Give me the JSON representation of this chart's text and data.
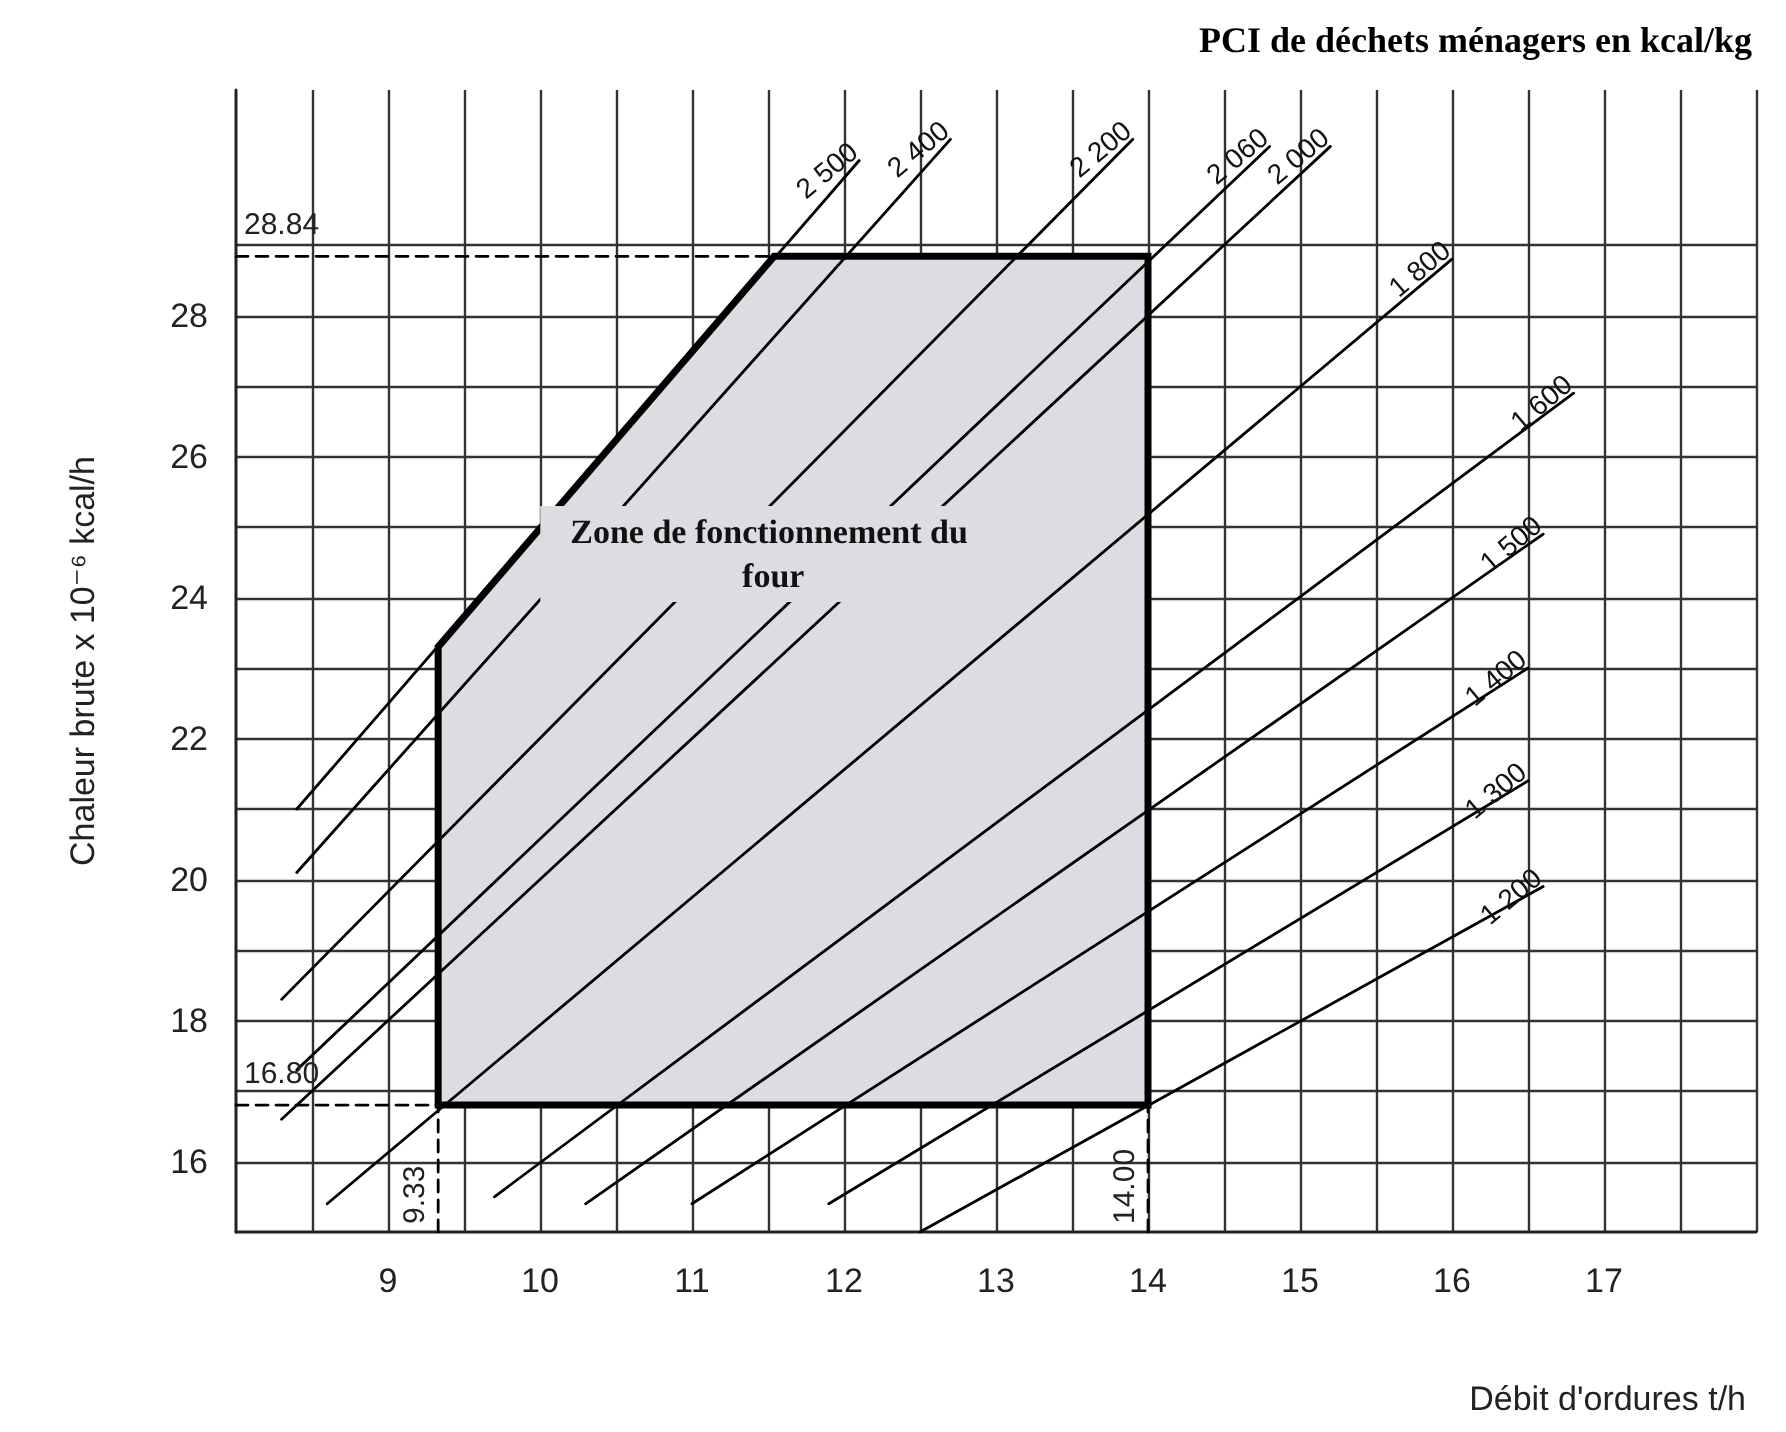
{
  "chart_data": {
    "type": "line",
    "title": "PCI de déchets ménagers en kcal/kg",
    "xlabel": "Débit d'ordures t/h",
    "ylabel": "Chaleur brute x 10⁻⁶ kcal/h",
    "xlim": [
      8,
      18
    ],
    "ylim": [
      15,
      31.2
    ],
    "xticks": [
      {
        "value": 8.5,
        "label": null
      },
      9,
      {
        "value": 9.5,
        "label": null
      },
      10,
      {
        "value": 10.5,
        "label": null
      },
      11,
      {
        "value": 11.5,
        "label": null
      },
      12,
      {
        "value": 12.5,
        "label": null
      },
      13,
      {
        "value": 13.5,
        "label": null
      },
      14,
      {
        "value": 14.5,
        "label": null
      },
      15,
      {
        "value": 15.5,
        "label": null
      },
      16,
      {
        "value": 16.5,
        "label": null
      },
      17,
      {
        "value": 17.5,
        "label": null
      },
      {
        "value": 18,
        "label": null
      }
    ],
    "yticks": [
      16,
      {
        "value": 17,
        "label": null
      },
      18,
      {
        "value": 19,
        "label": null
      },
      20,
      {
        "value": 21,
        "label": null
      },
      22,
      {
        "value": 23,
        "label": null
      },
      24,
      {
        "value": 25,
        "label": null
      },
      26,
      {
        "value": 27,
        "label": null
      },
      28,
      {
        "value": 29,
        "label": null
      }
    ],
    "grid": true,
    "legend": false,
    "line_style": "solid",
    "annotations": [
      "Zone de fonctionnement du four",
      {
        "text": "9.33",
        "x": 9.33,
        "y": 15.0
      },
      {
        "text": "14.00",
        "x": 14.0,
        "y": 15.0
      }
    ],
    "series": [
      {
        "type": "area",
        "color": "#dcdce2",
        "x": [
          9.33,
          9.33,
          11.54,
          14.0,
          14.0
        ],
        "values": [
          16.8,
          23.3,
          28.84,
          28.84,
          16.8
        ]
      },
      {
        "name": "2 500",
        "color": "#000000",
        "x": [
          8.4,
          12.1
        ],
        "values": [
          21.0,
          30.2
        ]
      },
      {
        "name": "2 400",
        "color": "#000000",
        "x": [
          8.4,
          12.7
        ],
        "values": [
          20.1,
          30.5
        ]
      },
      {
        "name": "2 200",
        "color": "#000000",
        "x": [
          8.3,
          13.9
        ],
        "values": [
          18.3,
          30.5
        ]
      },
      {
        "name": "2 060",
        "color": "#000000",
        "x": [
          8.4,
          14.8
        ],
        "values": [
          17.3,
          30.4
        ]
      },
      {
        "name": "2 000",
        "color": "#000000",
        "x": [
          8.3,
          15.2
        ],
        "values": [
          16.6,
          30.4
        ]
      },
      {
        "name": "1 800",
        "color": "#000000",
        "x": [
          8.6,
          16.0
        ],
        "values": [
          15.4,
          28.8
        ]
      },
      {
        "name": "1 600",
        "color": "#000000",
        "x": [
          9.7,
          16.8
        ],
        "values": [
          15.5,
          26.9
        ]
      },
      {
        "name": "1 500",
        "color": "#000000",
        "x": [
          10.3,
          16.6
        ],
        "values": [
          15.4,
          24.9
        ]
      },
      {
        "name": "1 400",
        "color": "#000000",
        "x": [
          11.0,
          16.5
        ],
        "values": [
          15.4,
          23.0
        ]
      },
      {
        "name": "1 300",
        "color": "#000000",
        "x": [
          11.9,
          16.5
        ],
        "values": [
          15.4,
          21.4
        ]
      },
      {
        "name": "1 200",
        "color": "#000000",
        "x": [
          12.5,
          16.6
        ],
        "values": [
          15.0,
          19.9
        ]
      },
      {
        "color": "#000000",
        "line_style": "dashed",
        "x": [
          8.0,
          11.54
        ],
        "values": [
          28.84,
          28.84
        ],
        "value_labels": [
          "28.84",
          null
        ]
      },
      {
        "color": "#000000",
        "line_style": "dashed",
        "x": [
          8.0,
          9.33
        ],
        "values": [
          16.8,
          16.8
        ],
        "value_labels": [
          "16.80",
          null
        ]
      },
      {
        "color": "#000000",
        "line_style": "dashed",
        "x": [
          9.33,
          9.33
        ],
        "values": [
          15.0,
          16.8
        ]
      },
      {
        "color": "#000000",
        "line_style": "dashed",
        "x": [
          14.0,
          14.0
        ],
        "values": [
          15.0,
          16.8
        ]
      }
    ]
  }
}
